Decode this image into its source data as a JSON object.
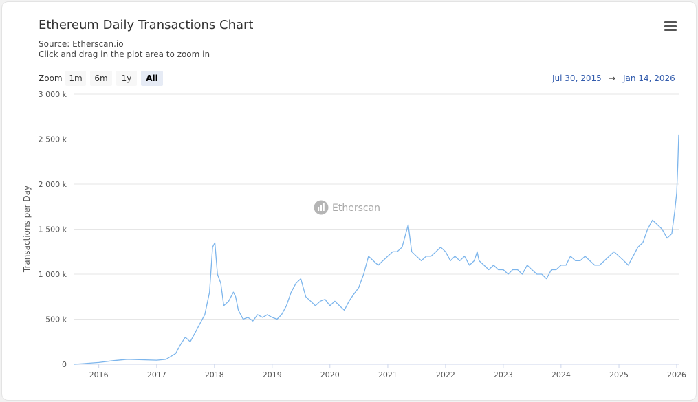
{
  "header": {
    "title": "Ethereum Daily Transactions Chart",
    "source": "Source: Etherscan.io",
    "hint": "Click and drag in the plot area to zoom in",
    "menu_icon": "hamburger-menu-icon"
  },
  "zoom": {
    "label": "Zoom",
    "buttons": [
      "1m",
      "6m",
      "1y",
      "All"
    ],
    "active": "All"
  },
  "range": {
    "from": "Jul 30, 2015",
    "arrow": "→",
    "to": "Jan 14, 2026"
  },
  "watermark": "Etherscan",
  "colors": {
    "line": "#7cb5ec",
    "grid": "#e6e6e6",
    "accent": "#335cad"
  },
  "chart_data": {
    "type": "line",
    "ylabel": "Transactions per Day",
    "ylim": [
      0,
      3000000
    ],
    "yticks": [
      0,
      500000,
      1000000,
      1500000,
      2000000,
      2500000,
      3000000
    ],
    "ytick_labels": [
      "0",
      "500 k",
      "1 000 k",
      "1 500 k",
      "2 000 k",
      "2 500 k",
      "3 000 k"
    ],
    "xlim": [
      "2015-07-30",
      "2026-01-14"
    ],
    "xtick_labels": [
      "2016",
      "2017",
      "2018",
      "2019",
      "2020",
      "2021",
      "2022",
      "2023",
      "2024",
      "2025",
      "2026"
    ],
    "series": [
      {
        "x": [
          "2015-07-30",
          "2015-10-01",
          "2016-01-01",
          "2016-04-01",
          "2016-07-01",
          "2016-10-01",
          "2017-01-01",
          "2017-03-01",
          "2017-05-01",
          "2017-06-01",
          "2017-07-01",
          "2017-08-01",
          "2017-09-01",
          "2017-10-01",
          "2017-11-01",
          "2017-12-01",
          "2017-12-20",
          "2018-01-04",
          "2018-01-20",
          "2018-02-10",
          "2018-03-01",
          "2018-04-01",
          "2018-05-01",
          "2018-05-15",
          "2018-06-01",
          "2018-07-01",
          "2018-08-01",
          "2018-09-01",
          "2018-10-01",
          "2018-11-01",
          "2018-12-01",
          "2019-01-01",
          "2019-02-01",
          "2019-03-01",
          "2019-04-01",
          "2019-05-01",
          "2019-06-01",
          "2019-07-01",
          "2019-08-01",
          "2019-09-01",
          "2019-10-01",
          "2019-11-01",
          "2019-12-01",
          "2020-01-01",
          "2020-02-01",
          "2020-03-01",
          "2020-04-01",
          "2020-05-01",
          "2020-06-01",
          "2020-07-01",
          "2020-08-01",
          "2020-09-01",
          "2020-10-01",
          "2020-11-01",
          "2020-12-01",
          "2021-01-01",
          "2021-02-01",
          "2021-03-01",
          "2021-04-01",
          "2021-05-10",
          "2021-06-01",
          "2021-07-01",
          "2021-08-01",
          "2021-09-01",
          "2021-10-01",
          "2021-11-01",
          "2021-12-01",
          "2022-01-01",
          "2022-02-01",
          "2022-03-01",
          "2022-04-01",
          "2022-05-01",
          "2022-06-01",
          "2022-07-01",
          "2022-07-20",
          "2022-08-01",
          "2022-09-01",
          "2022-10-01",
          "2022-11-01",
          "2022-12-01",
          "2023-01-01",
          "2023-02-01",
          "2023-03-01",
          "2023-04-01",
          "2023-05-01",
          "2023-06-01",
          "2023-07-01",
          "2023-08-01",
          "2023-09-01",
          "2023-10-01",
          "2023-11-01",
          "2023-12-01",
          "2024-01-01",
          "2024-02-01",
          "2024-03-01",
          "2024-04-01",
          "2024-05-01",
          "2024-06-01",
          "2024-07-01",
          "2024-08-01",
          "2024-09-01",
          "2024-10-01",
          "2024-11-01",
          "2024-12-01",
          "2025-01-01",
          "2025-02-01",
          "2025-03-01",
          "2025-04-01",
          "2025-05-01",
          "2025-06-01",
          "2025-07-01",
          "2025-08-01",
          "2025-09-01",
          "2025-10-01",
          "2025-11-01",
          "2025-12-01",
          "2025-12-20",
          "2026-01-01",
          "2026-01-08",
          "2026-01-14"
        ],
        "y": [
          0,
          8000,
          20000,
          40000,
          55000,
          50000,
          45000,
          55000,
          120000,
          220000,
          300000,
          250000,
          350000,
          450000,
          550000,
          800000,
          1300000,
          1350000,
          1000000,
          900000,
          650000,
          700000,
          800000,
          750000,
          600000,
          500000,
          520000,
          480000,
          550000,
          520000,
          550000,
          520000,
          500000,
          550000,
          650000,
          800000,
          900000,
          950000,
          750000,
          700000,
          650000,
          700000,
          720000,
          650000,
          700000,
          650000,
          600000,
          700000,
          780000,
          850000,
          1000000,
          1200000,
          1150000,
          1100000,
          1150000,
          1200000,
          1250000,
          1250000,
          1300000,
          1550000,
          1250000,
          1200000,
          1150000,
          1200000,
          1200000,
          1250000,
          1300000,
          1250000,
          1150000,
          1200000,
          1150000,
          1200000,
          1100000,
          1150000,
          1250000,
          1150000,
          1100000,
          1050000,
          1100000,
          1050000,
          1050000,
          1000000,
          1050000,
          1050000,
          1000000,
          1100000,
          1050000,
          1000000,
          1000000,
          950000,
          1050000,
          1050000,
          1100000,
          1100000,
          1200000,
          1150000,
          1150000,
          1200000,
          1150000,
          1100000,
          1100000,
          1150000,
          1200000,
          1250000,
          1200000,
          1150000,
          1100000,
          1200000,
          1300000,
          1350000,
          1500000,
          1600000,
          1550000,
          1500000,
          1400000,
          1450000,
          1700000,
          1900000,
          2200000,
          2550000
        ]
      }
    ]
  }
}
